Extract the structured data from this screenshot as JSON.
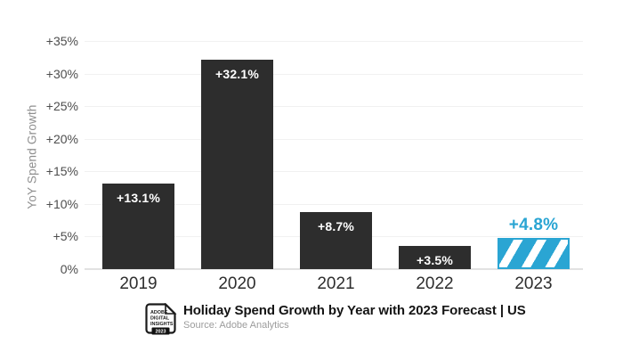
{
  "chart_data": {
    "type": "bar",
    "title": "Holiday Spend Growth by Year with 2023 Forecast | US",
    "source": "Source: Adobe Analytics",
    "ylabel": "YoY Spend Growth",
    "categories": [
      "2019",
      "2020",
      "2021",
      "2022",
      "2023"
    ],
    "values": [
      13.1,
      32.1,
      8.7,
      3.5,
      4.8
    ],
    "bar_labels": [
      "+13.1%",
      "+32.1%",
      "+8.7%",
      "+3.5%",
      "+4.8%"
    ],
    "forecast_index": 4,
    "y_ticks": [
      {
        "label": "+35%",
        "value": 35
      },
      {
        "label": "+30%",
        "value": 30
      },
      {
        "label": "+25%",
        "value": 25
      },
      {
        "label": "+20%",
        "value": 20
      },
      {
        "label": "+15%",
        "value": 15
      },
      {
        "label": "+10%",
        "value": 10
      },
      {
        "label": "+5%",
        "value": 5
      },
      {
        "label": "0%",
        "value": 0
      }
    ],
    "ylim": [
      0,
      35
    ],
    "grid": true,
    "legend": "none",
    "colors": {
      "bar": "#2d2d2d",
      "forecast": "#2aa5d3",
      "grid": "#f1f1f1",
      "baseline": "#e2e2e2",
      "value_inside": "#ffffff",
      "value_above": "#2aa5d3"
    }
  },
  "badge": {
    "line1": "ADOBE",
    "line2": "DIGITAL",
    "line3": "INSIGHTS",
    "year": "2023"
  }
}
